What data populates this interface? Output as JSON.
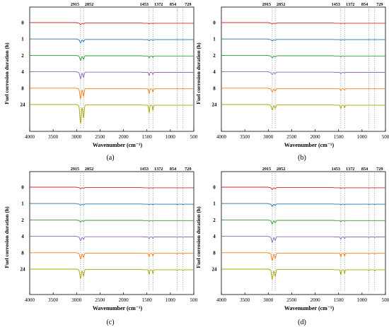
{
  "chart_data": {
    "type": "line",
    "xlabel": "Wavenumber (cm⁻¹)",
    "ylabel": "Fuel corrosion duration (h)",
    "xlim": [
      4000,
      500
    ],
    "x_reversed": true,
    "xticks": [
      "4000",
      "3500",
      "3000",
      "2500",
      "2000",
      "1500",
      "1000",
      "500"
    ],
    "peak_labels": [
      {
        "label": "2915",
        "x": 2915
      },
      {
        "label": "2852",
        "x": 2852
      },
      {
        "label": "1453",
        "x": 1453
      },
      {
        "label": "1372",
        "x": 1372
      },
      {
        "label": "854",
        "x": 854
      },
      {
        "label": "729",
        "x": 729
      }
    ],
    "series_labels": [
      "0",
      "1",
      "2",
      "4",
      "8",
      "24"
    ],
    "series_colors": [
      "#d62728",
      "#1f77b4",
      "#2ca02c",
      "#9467bd",
      "#ff7f0e",
      "#a8a800"
    ],
    "grid": false,
    "legend": "none",
    "panels": [
      {
        "caption": "(a)",
        "series": [
          {
            "label": "0",
            "peaks": [
              {
                "x": 2915,
                "depth": 0.2
              },
              {
                "x": 2852,
                "depth": 0.12
              },
              {
                "x": 1453,
                "depth": 0.08
              },
              {
                "x": 1372,
                "depth": 0.05
              }
            ]
          },
          {
            "label": "1",
            "peaks": [
              {
                "x": 2915,
                "depth": 0.45
              },
              {
                "x": 2852,
                "depth": 0.3
              },
              {
                "x": 1453,
                "depth": 0.15
              },
              {
                "x": 1372,
                "depth": 0.1
              }
            ]
          },
          {
            "label": "2",
            "peaks": [
              {
                "x": 2915,
                "depth": 0.6
              },
              {
                "x": 2852,
                "depth": 0.45
              },
              {
                "x": 1453,
                "depth": 0.25
              },
              {
                "x": 1372,
                "depth": 0.18
              }
            ]
          },
          {
            "label": "4",
            "peaks": [
              {
                "x": 2915,
                "depth": 0.85
              },
              {
                "x": 2852,
                "depth": 0.65
              },
              {
                "x": 1453,
                "depth": 0.4
              },
              {
                "x": 1372,
                "depth": 0.28
              }
            ]
          },
          {
            "label": "8",
            "peaks": [
              {
                "x": 2915,
                "depth": 1.3
              },
              {
                "x": 2852,
                "depth": 1.0
              },
              {
                "x": 1453,
                "depth": 0.6
              },
              {
                "x": 1372,
                "depth": 0.45
              }
            ]
          },
          {
            "label": "24",
            "peaks": [
              {
                "x": 2915,
                "depth": 2.4
              },
              {
                "x": 2852,
                "depth": 1.7
              },
              {
                "x": 1453,
                "depth": 1.0
              },
              {
                "x": 1372,
                "depth": 0.7
              },
              {
                "x": 854,
                "depth": 0.05
              },
              {
                "x": 729,
                "depth": 0.05
              }
            ]
          }
        ]
      },
      {
        "caption": "(b)",
        "series": [
          {
            "label": "0",
            "peaks": [
              {
                "x": 2915,
                "depth": 0.12
              },
              {
                "x": 2852,
                "depth": 0.08
              },
              {
                "x": 1453,
                "depth": 0.05
              },
              {
                "x": 1372,
                "depth": 0.04
              }
            ]
          },
          {
            "label": "1",
            "peaks": [
              {
                "x": 2915,
                "depth": 0.2
              },
              {
                "x": 2852,
                "depth": 0.12
              },
              {
                "x": 1453,
                "depth": 0.08
              },
              {
                "x": 1372,
                "depth": 0.05
              }
            ]
          },
          {
            "label": "2",
            "peaks": [
              {
                "x": 2915,
                "depth": 0.25
              },
              {
                "x": 2852,
                "depth": 0.15
              },
              {
                "x": 1453,
                "depth": 0.1
              },
              {
                "x": 1372,
                "depth": 0.07
              }
            ]
          },
          {
            "label": "4",
            "peaks": [
              {
                "x": 2915,
                "depth": 0.3
              },
              {
                "x": 2852,
                "depth": 0.2
              },
              {
                "x": 1453,
                "depth": 0.15
              },
              {
                "x": 1372,
                "depth": 0.1
              }
            ]
          },
          {
            "label": "8",
            "peaks": [
              {
                "x": 2915,
                "depth": 0.45
              },
              {
                "x": 2852,
                "depth": 0.3
              },
              {
                "x": 1453,
                "depth": 0.25
              },
              {
                "x": 1372,
                "depth": 0.2
              }
            ]
          },
          {
            "label": "24",
            "peaks": [
              {
                "x": 2915,
                "depth": 0.65
              },
              {
                "x": 2852,
                "depth": 0.45
              },
              {
                "x": 1453,
                "depth": 0.45
              },
              {
                "x": 1372,
                "depth": 0.35
              }
            ]
          }
        ]
      },
      {
        "caption": "(c)",
        "series": [
          {
            "label": "0",
            "peaks": [
              {
                "x": 2915,
                "depth": 0.15
              },
              {
                "x": 2852,
                "depth": 0.1
              },
              {
                "x": 1453,
                "depth": 0.05
              },
              {
                "x": 1372,
                "depth": 0.04
              },
              {
                "x": 854,
                "depth": 0.03
              },
              {
                "x": 729,
                "depth": 0.03
              }
            ]
          },
          {
            "label": "1",
            "peaks": [
              {
                "x": 2915,
                "depth": 0.18
              },
              {
                "x": 2852,
                "depth": 0.12
              },
              {
                "x": 1453,
                "depth": 0.07
              },
              {
                "x": 1372,
                "depth": 0.05
              },
              {
                "x": 854,
                "depth": 0.04
              },
              {
                "x": 729,
                "depth": 0.04
              }
            ]
          },
          {
            "label": "2",
            "peaks": [
              {
                "x": 2915,
                "depth": 0.22
              },
              {
                "x": 2852,
                "depth": 0.15
              },
              {
                "x": 1453,
                "depth": 0.1
              },
              {
                "x": 1372,
                "depth": 0.07
              },
              {
                "x": 854,
                "depth": 0.05
              },
              {
                "x": 729,
                "depth": 0.05
              }
            ]
          },
          {
            "label": "4",
            "peaks": [
              {
                "x": 2915,
                "depth": 0.5
              },
              {
                "x": 2852,
                "depth": 0.35
              },
              {
                "x": 1453,
                "depth": 0.25
              },
              {
                "x": 1372,
                "depth": 0.2
              },
              {
                "x": 854,
                "depth": 0.06
              },
              {
                "x": 729,
                "depth": 0.06
              }
            ]
          },
          {
            "label": "8",
            "peaks": [
              {
                "x": 2915,
                "depth": 0.75
              },
              {
                "x": 2852,
                "depth": 0.55
              },
              {
                "x": 1453,
                "depth": 0.45
              },
              {
                "x": 1372,
                "depth": 0.35
              },
              {
                "x": 854,
                "depth": 0.08
              },
              {
                "x": 729,
                "depth": 0.08
              }
            ]
          },
          {
            "label": "24",
            "peaks": [
              {
                "x": 2915,
                "depth": 1.15
              },
              {
                "x": 2852,
                "depth": 0.85
              },
              {
                "x": 1453,
                "depth": 0.6
              },
              {
                "x": 1372,
                "depth": 0.5
              },
              {
                "x": 854,
                "depth": 0.12
              },
              {
                "x": 729,
                "depth": 0.12
              }
            ]
          }
        ]
      },
      {
        "caption": "(d)",
        "series": [
          {
            "label": "0",
            "peaks": [
              {
                "x": 2915,
                "depth": 0.25
              },
              {
                "x": 2852,
                "depth": 0.15
              },
              {
                "x": 1453,
                "depth": 0.07
              },
              {
                "x": 1372,
                "depth": 0.05
              },
              {
                "x": 854,
                "depth": 0.03
              },
              {
                "x": 729,
                "depth": 0.03
              }
            ]
          },
          {
            "label": "1",
            "peaks": [
              {
                "x": 2915,
                "depth": 0.3
              },
              {
                "x": 2852,
                "depth": 0.2
              },
              {
                "x": 1453,
                "depth": 0.1
              },
              {
                "x": 1372,
                "depth": 0.07
              },
              {
                "x": 854,
                "depth": 0.04
              },
              {
                "x": 729,
                "depth": 0.04
              }
            ]
          },
          {
            "label": "2",
            "peaks": [
              {
                "x": 2915,
                "depth": 0.45
              },
              {
                "x": 2852,
                "depth": 0.3
              },
              {
                "x": 1453,
                "depth": 0.15
              },
              {
                "x": 1372,
                "depth": 0.1
              },
              {
                "x": 854,
                "depth": 0.05
              },
              {
                "x": 729,
                "depth": 0.05
              }
            ]
          },
          {
            "label": "4",
            "peaks": [
              {
                "x": 2915,
                "depth": 0.75
              },
              {
                "x": 2852,
                "depth": 0.5
              },
              {
                "x": 1453,
                "depth": 0.3
              },
              {
                "x": 1372,
                "depth": 0.22
              },
              {
                "x": 854,
                "depth": 0.08
              },
              {
                "x": 729,
                "depth": 0.08
              }
            ]
          },
          {
            "label": "8",
            "peaks": [
              {
                "x": 2915,
                "depth": 0.95
              },
              {
                "x": 2852,
                "depth": 0.7
              },
              {
                "x": 1453,
                "depth": 0.45
              },
              {
                "x": 1372,
                "depth": 0.35
              },
              {
                "x": 854,
                "depth": 0.1
              },
              {
                "x": 729,
                "depth": 0.1
              }
            ]
          },
          {
            "label": "24",
            "peaks": [
              {
                "x": 2915,
                "depth": 1.25
              },
              {
                "x": 2852,
                "depth": 0.9
              },
              {
                "x": 1453,
                "depth": 0.65
              },
              {
                "x": 1372,
                "depth": 0.5
              },
              {
                "x": 854,
                "depth": 0.15
              },
              {
                "x": 729,
                "depth": 0.15
              }
            ]
          }
        ]
      }
    ]
  }
}
